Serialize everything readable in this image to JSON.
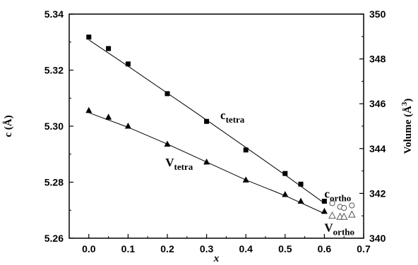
{
  "chart_data": {
    "type": "scatter",
    "xlabel": "x",
    "ylabel_left": "c (Å)",
    "ylabel_right_main": "Volume (Å",
    "ylabel_right_sup": "3",
    "ylabel_right_close": ")",
    "xlim": [
      -0.05,
      0.7
    ],
    "ylim_left": [
      5.26,
      5.34
    ],
    "ylim_right": [
      340,
      350
    ],
    "x_ticks": [
      "0.0",
      "0.1",
      "0.2",
      "0.3",
      "0.4",
      "0.5",
      "0.6",
      "0.7"
    ],
    "y_left_ticks": [
      "5.26",
      "5.28",
      "5.30",
      "5.32",
      "5.34"
    ],
    "y_right_ticks": [
      "340",
      "342",
      "344",
      "346",
      "348",
      "350"
    ],
    "series": [
      {
        "name": "c_tetra",
        "axis": "left",
        "marker": "filled-square",
        "x": [
          0.0,
          0.05,
          0.1,
          0.2,
          0.3,
          0.4,
          0.5,
          0.54,
          0.6
        ],
        "y": [
          5.3318,
          5.3277,
          5.3222,
          5.3116,
          5.3017,
          5.2915,
          5.2831,
          5.2793,
          5.2732
        ]
      },
      {
        "name": "V_tetra",
        "axis": "right",
        "marker": "filled-triangle",
        "x": [
          0.0,
          0.05,
          0.1,
          0.2,
          0.3,
          0.4,
          0.5,
          0.54,
          0.6
        ],
        "y": [
          345.7,
          345.4,
          345.0,
          344.2,
          343.4,
          342.6,
          341.95,
          341.65,
          341.2
        ]
      },
      {
        "name": "c_ortho",
        "axis": "left",
        "marker": "open-circle",
        "x": [
          0.62,
          0.64,
          0.65,
          0.67
        ],
        "y": [
          5.2725,
          5.2712,
          5.2708,
          5.2717
        ]
      },
      {
        "name": "V_ortho",
        "axis": "right",
        "marker": "open-triangle",
        "x": [
          0.62,
          0.64,
          0.65,
          0.67
        ],
        "y": [
          341.0,
          340.95,
          340.95,
          341.05
        ]
      }
    ],
    "fits": [
      {
        "name": "c_tetra_fit",
        "axis": "left",
        "x": [
          0.0,
          0.1,
          0.2,
          0.3,
          0.4,
          0.5,
          0.6
        ],
        "y": [
          5.3308,
          5.3214,
          5.3118,
          5.3022,
          5.2924,
          5.2826,
          5.2725
        ]
      },
      {
        "name": "V_tetra_fit",
        "axis": "right",
        "x": [
          0.0,
          0.1,
          0.2,
          0.3,
          0.4,
          0.5,
          0.6
        ],
        "y": [
          345.6,
          344.95,
          344.2,
          343.4,
          342.6,
          341.9,
          341.1
        ]
      }
    ],
    "annotations": [
      {
        "name": "c-tetra-label",
        "text": "c",
        "sub": "tetra",
        "x": 0.335,
        "y_left": 5.3025
      },
      {
        "name": "v-tetra-label",
        "text": "V",
        "sub": "tetra",
        "x": 0.195,
        "y_left": 5.2857
      },
      {
        "name": "c-ortho-label",
        "text": "c",
        "sub": "ortho",
        "x": 0.6,
        "y_left": 5.2745
      },
      {
        "name": "v-ortho-label",
        "text": "V",
        "sub": "ortho",
        "x": 0.6,
        "y_left": 5.2624
      }
    ]
  }
}
